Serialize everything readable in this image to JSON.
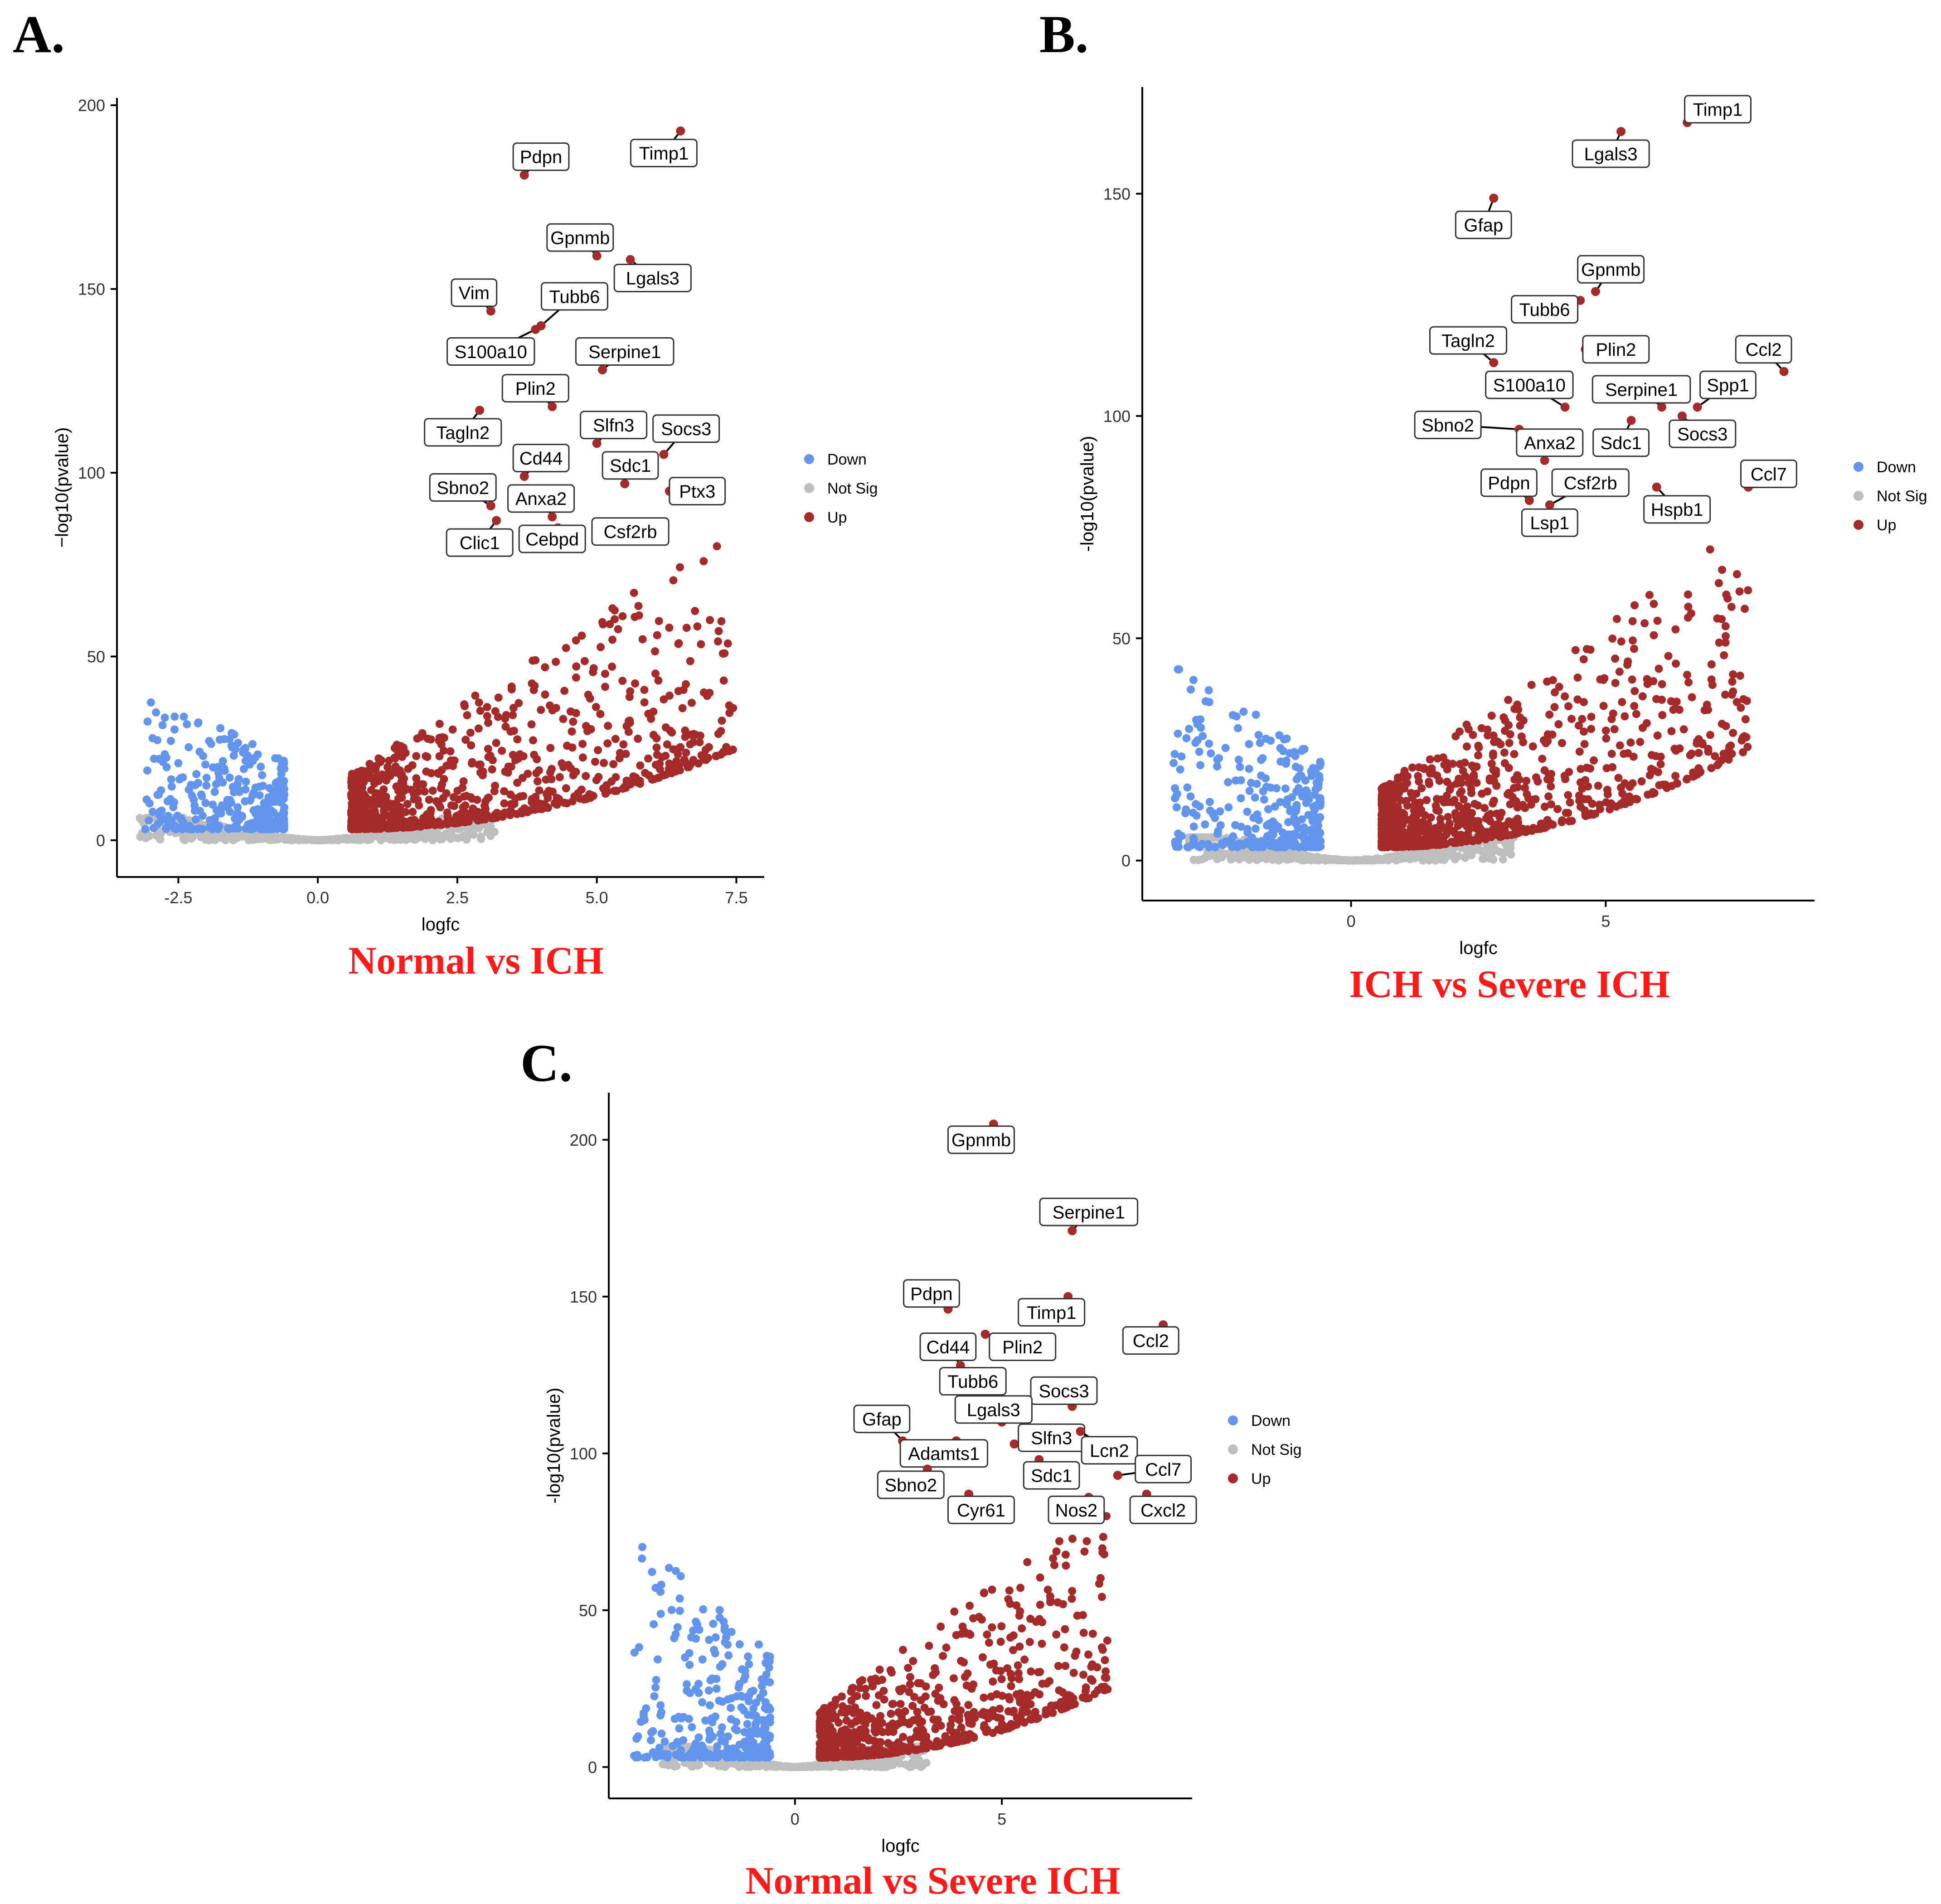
{
  "figure": {
    "colors": {
      "down": "#6495ED",
      "not_sig": "#BEBEBE",
      "up": "#A52A2A",
      "caption": "#FF1A1A",
      "axis": "#333333"
    }
  },
  "chart_data": [
    {
      "panel_label": "A.",
      "caption": "Normal vs ICH",
      "type": "scatter",
      "subtype": "volcano",
      "xlabel": "logfc",
      "ylabel": "−log10(pvalue)",
      "xlim": [
        -3.6,
        8.0
      ],
      "ylim": [
        -10,
        202
      ],
      "xticks": [
        -2.5,
        0.0,
        2.5,
        5.0,
        7.5
      ],
      "xtick_labels": [
        "-2.5",
        "0.0",
        "2.5",
        "5.0",
        "7.5"
      ],
      "yticks": [
        0,
        50,
        100,
        150,
        200
      ],
      "ytick_labels": [
        "0",
        "50",
        "100",
        "150",
        "200"
      ],
      "legend": {
        "position": "right",
        "entries": [
          "Down",
          "Not Sig",
          "Up"
        ]
      },
      "grid": false,
      "cloud": {
        "down_min_x": -3.1,
        "down_max_x": -0.6,
        "up_min_x": 0.6,
        "up_max_x": 7.5,
        "up_count": 900,
        "down_count": 320,
        "up_ymax": 80,
        "down_ymax": 39
      },
      "labeled_points": [
        {
          "gene": "Timp1",
          "x": 6.5,
          "y": 193,
          "lx": 6.2,
          "ly": 187
        },
        {
          "gene": "Pdpn",
          "x": 3.7,
          "y": 181,
          "lx": 4.0,
          "ly": 186
        },
        {
          "gene": "Gpnmb",
          "x": 5.0,
          "y": 159,
          "lx": 4.7,
          "ly": 164
        },
        {
          "gene": "Lgals3",
          "x": 5.6,
          "y": 158,
          "lx": 6.0,
          "ly": 153
        },
        {
          "gene": "Vim",
          "x": 3.1,
          "y": 144,
          "lx": 2.8,
          "ly": 149
        },
        {
          "gene": "Tubb6",
          "x": 4.0,
          "y": 140,
          "lx": 4.6,
          "ly": 148
        },
        {
          "gene": "S100a10",
          "x": 3.9,
          "y": 139,
          "lx": 3.1,
          "ly": 133
        },
        {
          "gene": "Serpine1",
          "x": 5.1,
          "y": 128,
          "lx": 5.5,
          "ly": 133
        },
        {
          "gene": "Plin2",
          "x": 4.2,
          "y": 118,
          "lx": 3.9,
          "ly": 123
        },
        {
          "gene": "Tagln2",
          "x": 2.9,
          "y": 117,
          "lx": 2.6,
          "ly": 111
        },
        {
          "gene": "Slfn3",
          "x": 5.0,
          "y": 108,
          "lx": 5.3,
          "ly": 113
        },
        {
          "gene": "Socs3",
          "x": 6.2,
          "y": 105,
          "lx": 6.6,
          "ly": 112
        },
        {
          "gene": "Cd44",
          "x": 3.7,
          "y": 99,
          "lx": 4.0,
          "ly": 104
        },
        {
          "gene": "Sdc1",
          "x": 5.5,
          "y": 97,
          "lx": 5.6,
          "ly": 102
        },
        {
          "gene": "Ptx3",
          "x": 6.3,
          "y": 95,
          "lx": 6.8,
          "ly": 95
        },
        {
          "gene": "Sbno2",
          "x": 3.1,
          "y": 91,
          "lx": 2.6,
          "ly": 96
        },
        {
          "gene": "Anxa2",
          "x": 4.2,
          "y": 88,
          "lx": 4.0,
          "ly": 93
        },
        {
          "gene": "Cebpd",
          "x": 4.3,
          "y": 85,
          "lx": 4.2,
          "ly": 82
        },
        {
          "gene": "Csf2rb",
          "x": 5.2,
          "y": 83,
          "lx": 5.6,
          "ly": 84
        },
        {
          "gene": "Clic1",
          "x": 3.2,
          "y": 87,
          "lx": 2.9,
          "ly": 81
        }
      ]
    },
    {
      "panel_label": "B.",
      "caption": "ICH vs Severe ICH",
      "type": "scatter",
      "subtype": "volcano",
      "xlabel": "logfc",
      "ylabel": "-log10(pvalue)",
      "xlim": [
        -4.1,
        9.1
      ],
      "ylim": [
        -9,
        174
      ],
      "xticks": [
        0,
        5
      ],
      "xtick_labels": [
        "0",
        "5"
      ],
      "yticks": [
        0,
        50,
        100,
        150
      ],
      "ytick_labels": [
        "0",
        "50",
        "100",
        "150"
      ],
      "legend": {
        "position": "right",
        "entries": [
          "Down",
          "Not Sig",
          "Up"
        ]
      },
      "grid": false,
      "cloud": {
        "down_min_x": -3.5,
        "down_max_x": -0.6,
        "up_min_x": 0.6,
        "up_max_x": 7.8,
        "up_count": 900,
        "down_count": 320,
        "up_ymax": 71,
        "down_ymax": 43
      },
      "labeled_points": [
        {
          "gene": "Timp1",
          "x": 6.6,
          "y": 166,
          "lx": 7.2,
          "ly": 169
        },
        {
          "gene": "Lgals3",
          "x": 5.3,
          "y": 164,
          "lx": 5.1,
          "ly": 159
        },
        {
          "gene": "Gfap",
          "x": 2.8,
          "y": 149,
          "lx": 2.6,
          "ly": 143
        },
        {
          "gene": "Gpnmb",
          "x": 4.8,
          "y": 128,
          "lx": 5.1,
          "ly": 133
        },
        {
          "gene": "Tubb6",
          "x": 4.5,
          "y": 126,
          "lx": 3.8,
          "ly": 124
        },
        {
          "gene": "Ccl2",
          "x": 8.5,
          "y": 110,
          "lx": 8.1,
          "ly": 115
        },
        {
          "gene": "Tagln2",
          "x": 2.8,
          "y": 112,
          "lx": 2.3,
          "ly": 117
        },
        {
          "gene": "Plin2",
          "x": 4.6,
          "y": 115,
          "lx": 5.2,
          "ly": 115
        },
        {
          "gene": "S100a10",
          "x": 4.2,
          "y": 102,
          "lx": 3.5,
          "ly": 107
        },
        {
          "gene": "Serpine1",
          "x": 6.1,
          "y": 102,
          "lx": 5.7,
          "ly": 106
        },
        {
          "gene": "Spp1",
          "x": 6.8,
          "y": 102,
          "lx": 7.4,
          "ly": 107
        },
        {
          "gene": "Sbno2",
          "x": 3.3,
          "y": 97,
          "lx": 1.9,
          "ly": 98
        },
        {
          "gene": "Socs3",
          "x": 6.5,
          "y": 100,
          "lx": 6.9,
          "ly": 96
        },
        {
          "gene": "Sdc1",
          "x": 5.5,
          "y": 99,
          "lx": 5.3,
          "ly": 94
        },
        {
          "gene": "Anxa2",
          "x": 3.8,
          "y": 90,
          "lx": 3.9,
          "ly": 94
        },
        {
          "gene": "Ccl7",
          "x": 7.8,
          "y": 84,
          "lx": 8.2,
          "ly": 87
        },
        {
          "gene": "Pdpn",
          "x": 3.5,
          "y": 81,
          "lx": 3.1,
          "ly": 85
        },
        {
          "gene": "Csf2rb",
          "x": 3.9,
          "y": 80,
          "lx": 4.7,
          "ly": 85
        },
        {
          "gene": "Hspb1",
          "x": 6.0,
          "y": 84,
          "lx": 6.4,
          "ly": 79
        },
        {
          "gene": "Lsp1",
          "x": 3.7,
          "y": 78,
          "lx": 3.9,
          "ly": 76
        }
      ]
    },
    {
      "panel_label": "C.",
      "caption": "Normal vs Severe ICH",
      "type": "scatter",
      "subtype": "volcano",
      "xlabel": "logfc",
      "ylabel": "-log10(pvalue)",
      "xlim": [
        -4.5,
        9.6
      ],
      "ylim": [
        -10,
        215
      ],
      "xticks": [
        0,
        5
      ],
      "xtick_labels": [
        "0",
        "5"
      ],
      "yticks": [
        0,
        50,
        100,
        150,
        200
      ],
      "ytick_labels": [
        "0",
        "50",
        "100",
        "150",
        "200"
      ],
      "legend": {
        "position": "right",
        "entries": [
          "Down",
          "Not Sig",
          "Up"
        ]
      },
      "grid": false,
      "cloud": {
        "down_min_x": -3.9,
        "down_max_x": -0.6,
        "up_min_x": 0.6,
        "up_max_x": 7.6,
        "up_count": 700,
        "down_count": 300,
        "up_ymax": 80,
        "down_ymax": 73
      },
      "labeled_points": [
        {
          "gene": "Gpnmb",
          "x": 4.8,
          "y": 205,
          "lx": 4.5,
          "ly": 200
        },
        {
          "gene": "Serpine1",
          "x": 6.7,
          "y": 171,
          "lx": 7.1,
          "ly": 177
        },
        {
          "gene": "Pdpn",
          "x": 3.7,
          "y": 146,
          "lx": 3.3,
          "ly": 151
        },
        {
          "gene": "Timp1",
          "x": 6.6,
          "y": 150,
          "lx": 6.2,
          "ly": 145
        },
        {
          "gene": "Ccl2",
          "x": 8.9,
          "y": 141,
          "lx": 8.6,
          "ly": 136
        },
        {
          "gene": "Cd44",
          "x": 4.0,
          "y": 128,
          "lx": 3.7,
          "ly": 134
        },
        {
          "gene": "Plin2",
          "x": 4.6,
          "y": 138,
          "lx": 5.5,
          "ly": 134
        },
        {
          "gene": "Tubb6",
          "x": 4.2,
          "y": 118,
          "lx": 4.3,
          "ly": 123
        },
        {
          "gene": "Socs3",
          "x": 6.7,
          "y": 115,
          "lx": 6.5,
          "ly": 120
        },
        {
          "gene": "Gfap",
          "x": 2.6,
          "y": 104,
          "lx": 2.1,
          "ly": 111
        },
        {
          "gene": "Lgals3",
          "x": 5.0,
          "y": 110,
          "lx": 4.8,
          "ly": 114
        },
        {
          "gene": "Adamts1",
          "x": 3.9,
          "y": 104,
          "lx": 3.6,
          "ly": 100
        },
        {
          "gene": "Slfn3",
          "x": 5.3,
          "y": 103,
          "lx": 6.2,
          "ly": 105
        },
        {
          "gene": "Lcn2",
          "x": 6.9,
          "y": 107,
          "lx": 7.6,
          "ly": 101
        },
        {
          "gene": "Sdc1",
          "x": 5.9,
          "y": 98,
          "lx": 6.2,
          "ly": 93
        },
        {
          "gene": "Ccl7",
          "x": 7.8,
          "y": 93,
          "lx": 8.9,
          "ly": 95
        },
        {
          "gene": "Sbno2",
          "x": 3.2,
          "y": 95,
          "lx": 2.8,
          "ly": 90
        },
        {
          "gene": "Cyr61",
          "x": 4.2,
          "y": 87,
          "lx": 4.5,
          "ly": 82
        },
        {
          "gene": "Nos2",
          "x": 7.1,
          "y": 86,
          "lx": 6.8,
          "ly": 82
        },
        {
          "gene": "Cxcl2",
          "x": 8.5,
          "y": 87,
          "lx": 8.9,
          "ly": 82
        }
      ]
    }
  ]
}
